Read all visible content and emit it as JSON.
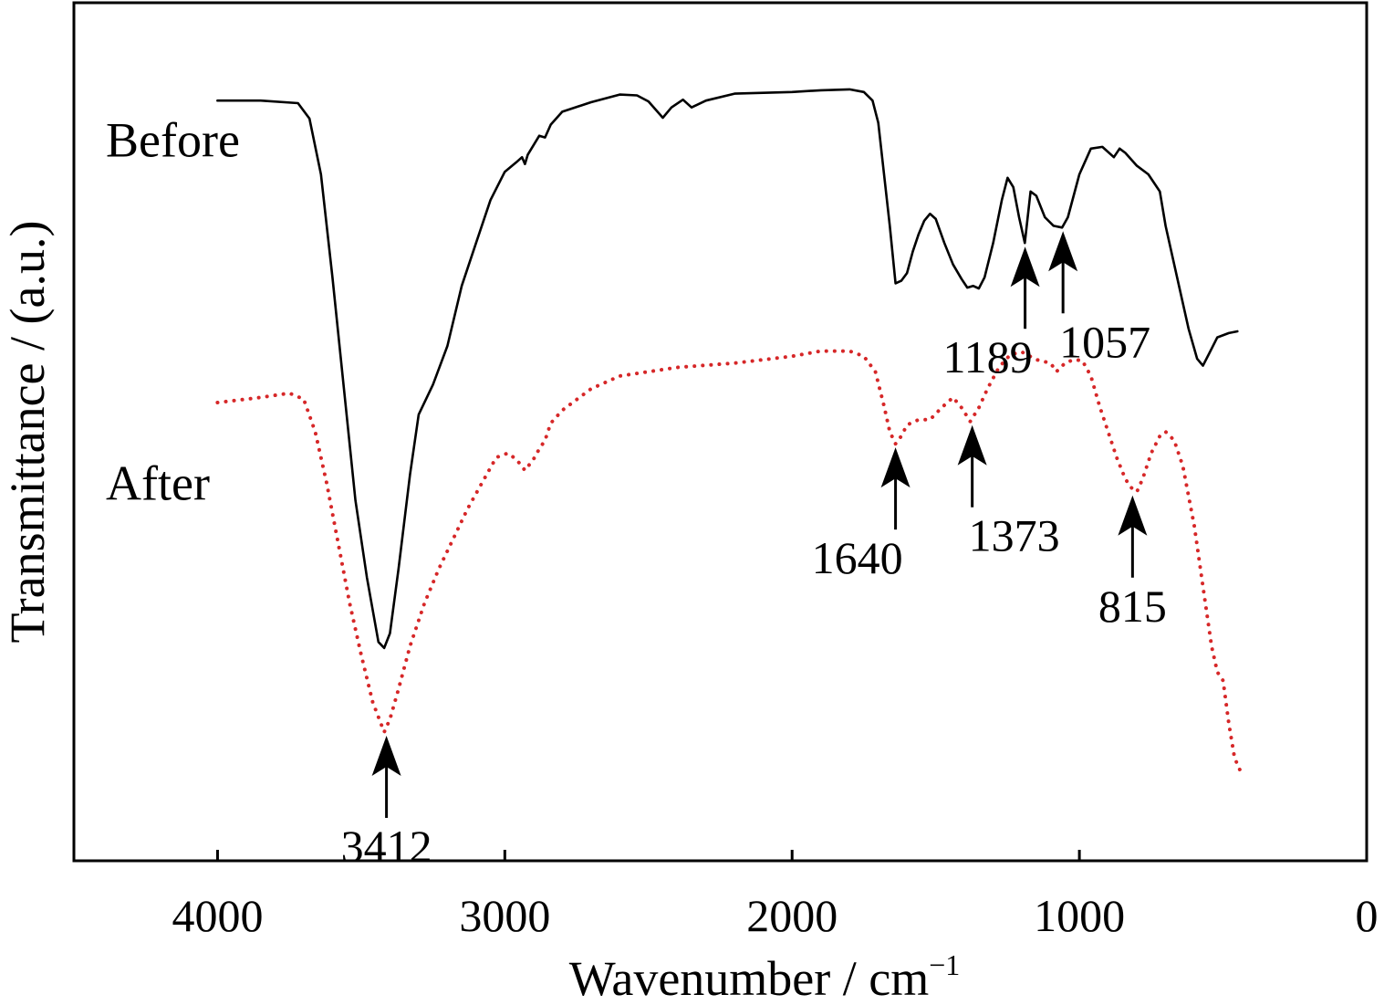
{
  "chart_data": {
    "type": "line",
    "xlabel": "Wavenumber / cm",
    "xlabel_superscript": "−1",
    "ylabel": "Transmittance / (a.u.)",
    "xlim": [
      4500,
      0
    ],
    "x_reversed": true,
    "y_ticks_shown": false,
    "xticks": [
      "4000",
      "3000",
      "2000",
      "1000",
      "0"
    ],
    "xtick_values": [
      4000,
      3000,
      2000,
      1000,
      0
    ],
    "grid": false,
    "ylim": [
      0,
      100
    ],
    "series": [
      {
        "name": "Before",
        "label_anchor_x": 3950,
        "label_anchor_y": 84,
        "color": "#000000",
        "style": "solid",
        "points": [
          [
            4000,
            88.6
          ],
          [
            3850,
            88.6
          ],
          [
            3720,
            88.3
          ],
          [
            3680,
            86.5
          ],
          [
            3640,
            80.0
          ],
          [
            3600,
            68.0
          ],
          [
            3560,
            55.0
          ],
          [
            3520,
            42.0
          ],
          [
            3480,
            33.0
          ],
          [
            3440,
            25.5
          ],
          [
            3420,
            24.8
          ],
          [
            3400,
            26.5
          ],
          [
            3370,
            34.0
          ],
          [
            3330,
            45.0
          ],
          [
            3300,
            52.0
          ],
          [
            3250,
            55.5
          ],
          [
            3200,
            60.0
          ],
          [
            3150,
            67.0
          ],
          [
            3100,
            72.0
          ],
          [
            3050,
            77.0
          ],
          [
            3000,
            80.3
          ],
          [
            2960,
            81.4
          ],
          [
            2940,
            82.0
          ],
          [
            2930,
            81.2
          ],
          [
            2920,
            82.3
          ],
          [
            2880,
            84.5
          ],
          [
            2860,
            84.3
          ],
          [
            2840,
            85.8
          ],
          [
            2800,
            87.3
          ],
          [
            2700,
            88.4
          ],
          [
            2600,
            89.3
          ],
          [
            2540,
            89.2
          ],
          [
            2500,
            88.5
          ],
          [
            2450,
            86.6
          ],
          [
            2420,
            87.8
          ],
          [
            2380,
            88.7
          ],
          [
            2350,
            87.8
          ],
          [
            2300,
            88.6
          ],
          [
            2200,
            89.4
          ],
          [
            2000,
            89.6
          ],
          [
            1900,
            89.8
          ],
          [
            1800,
            89.9
          ],
          [
            1750,
            89.6
          ],
          [
            1720,
            88.6
          ],
          [
            1700,
            86.0
          ],
          [
            1680,
            80.0
          ],
          [
            1660,
            74.0
          ],
          [
            1640,
            67.3
          ],
          [
            1620,
            67.6
          ],
          [
            1600,
            68.5
          ],
          [
            1580,
            71.0
          ],
          [
            1560,
            73.0
          ],
          [
            1540,
            74.6
          ],
          [
            1520,
            75.4
          ],
          [
            1500,
            74.8
          ],
          [
            1470,
            72.0
          ],
          [
            1440,
            69.5
          ],
          [
            1410,
            67.8
          ],
          [
            1390,
            66.8
          ],
          [
            1370,
            67.0
          ],
          [
            1350,
            66.7
          ],
          [
            1330,
            68.0
          ],
          [
            1300,
            72.0
          ],
          [
            1270,
            77.0
          ],
          [
            1250,
            79.6
          ],
          [
            1230,
            78.5
          ],
          [
            1210,
            75.0
          ],
          [
            1190,
            72.0
          ],
          [
            1170,
            78.0
          ],
          [
            1150,
            77.5
          ],
          [
            1120,
            75.0
          ],
          [
            1090,
            74.0
          ],
          [
            1060,
            73.8
          ],
          [
            1040,
            75.0
          ],
          [
            1000,
            80.0
          ],
          [
            960,
            83.0
          ],
          [
            920,
            83.2
          ],
          [
            880,
            82.0
          ],
          [
            860,
            83.0
          ],
          [
            840,
            82.5
          ],
          [
            800,
            81.0
          ],
          [
            760,
            80.0
          ],
          [
            720,
            78.0
          ],
          [
            700,
            74.0
          ],
          [
            660,
            68.0
          ],
          [
            620,
            62.0
          ],
          [
            590,
            58.5
          ],
          [
            570,
            57.7
          ],
          [
            550,
            59.0
          ],
          [
            520,
            61.0
          ],
          [
            480,
            61.5
          ],
          [
            450,
            61.7
          ]
        ]
      },
      {
        "name": "After",
        "label_anchor_x": 3950,
        "label_anchor_y": 44,
        "color": "#d62728",
        "style": "dotted",
        "points": [
          [
            4000,
            53.4
          ],
          [
            3850,
            54.0
          ],
          [
            3750,
            54.5
          ],
          [
            3700,
            53.8
          ],
          [
            3660,
            50.0
          ],
          [
            3620,
            44.0
          ],
          [
            3580,
            37.0
          ],
          [
            3540,
            30.0
          ],
          [
            3500,
            24.0
          ],
          [
            3460,
            18.5
          ],
          [
            3420,
            15.0
          ],
          [
            3400,
            16.5
          ],
          [
            3370,
            20.0
          ],
          [
            3330,
            25.0
          ],
          [
            3280,
            30.0
          ],
          [
            3230,
            34.0
          ],
          [
            3180,
            37.5
          ],
          [
            3130,
            41.0
          ],
          [
            3080,
            44.0
          ],
          [
            3030,
            47.0
          ],
          [
            2990,
            47.5
          ],
          [
            2960,
            46.8
          ],
          [
            2930,
            45.5
          ],
          [
            2900,
            46.8
          ],
          [
            2880,
            48.0
          ],
          [
            2860,
            49.0
          ],
          [
            2840,
            51.0
          ],
          [
            2800,
            52.5
          ],
          [
            2700,
            55.0
          ],
          [
            2600,
            56.5
          ],
          [
            2400,
            57.5
          ],
          [
            2200,
            58.0
          ],
          [
            2000,
            58.8
          ],
          [
            1900,
            59.4
          ],
          [
            1800,
            59.4
          ],
          [
            1750,
            58.8
          ],
          [
            1710,
            57.0
          ],
          [
            1680,
            53.0
          ],
          [
            1660,
            50.0
          ],
          [
            1640,
            48.6
          ],
          [
            1620,
            49.5
          ],
          [
            1600,
            50.8
          ],
          [
            1560,
            51.4
          ],
          [
            1520,
            51.4
          ],
          [
            1480,
            52.8
          ],
          [
            1440,
            54.0
          ],
          [
            1410,
            52.8
          ],
          [
            1380,
            51.2
          ],
          [
            1350,
            52.8
          ],
          [
            1320,
            55.0
          ],
          [
            1280,
            57.5
          ],
          [
            1240,
            59.0
          ],
          [
            1200,
            59.3
          ],
          [
            1150,
            58.4
          ],
          [
            1100,
            58.0
          ],
          [
            1080,
            57.0
          ],
          [
            1050,
            58.0
          ],
          [
            1020,
            58.4
          ],
          [
            990,
            58.3
          ],
          [
            960,
            56.5
          ],
          [
            930,
            53.0
          ],
          [
            900,
            50.0
          ],
          [
            870,
            47.0
          ],
          [
            840,
            44.5
          ],
          [
            820,
            43.5
          ],
          [
            800,
            43.0
          ],
          [
            780,
            44.5
          ],
          [
            750,
            47.5
          ],
          [
            720,
            49.5
          ],
          [
            700,
            50.0
          ],
          [
            670,
            49.0
          ],
          [
            640,
            46.0
          ],
          [
            600,
            39.0
          ],
          [
            570,
            32.0
          ],
          [
            540,
            25.0
          ],
          [
            520,
            22.0
          ],
          [
            500,
            21.0
          ],
          [
            480,
            16.0
          ],
          [
            460,
            12.0
          ],
          [
            440,
            10.5
          ]
        ]
      }
    ],
    "annotations": [
      {
        "label": "1189",
        "x": 1189,
        "y": 72.0,
        "label_position": "below-left",
        "series": "Before"
      },
      {
        "label": "1057",
        "x": 1057,
        "y": 73.8,
        "label_position": "below-right",
        "series": "Before"
      },
      {
        "label": "3412",
        "x": 3412,
        "y": 15.0,
        "label_position": "below",
        "series": "After"
      },
      {
        "label": "1640",
        "x": 1640,
        "y": 48.6,
        "label_position": "below-left",
        "series": "After"
      },
      {
        "label": "1373",
        "x": 1373,
        "y": 51.2,
        "label_position": "below-right",
        "series": "After"
      },
      {
        "label": "815",
        "x": 815,
        "y": 43.0,
        "label_position": "below",
        "series": "After"
      }
    ]
  },
  "colors": {
    "axis": "#000000",
    "after_series": "#d62728",
    "before_series": "#000000"
  }
}
